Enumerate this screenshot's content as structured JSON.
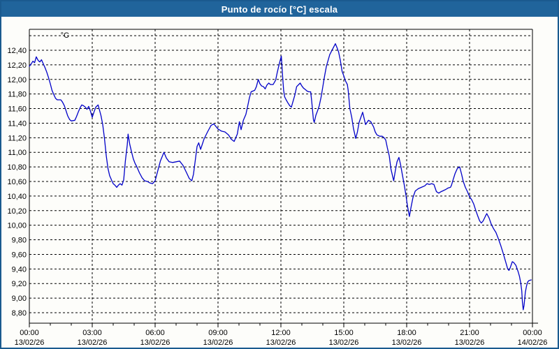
{
  "window": {
    "title": "Punto de rocío [°C] escala"
  },
  "colors": {
    "titlebar": "#20649b",
    "border": "#1a5a8f",
    "curve": "#0000c8",
    "grid": "#000000",
    "text": "#000000",
    "bg": "#fdfdfa"
  },
  "chart_data": {
    "type": "line",
    "title": "Punto de rocío [°C] escala",
    "unit_label": "°C",
    "legend": "none",
    "grid": "dashed",
    "x_axis": {
      "hours_span": 24,
      "major_tick_hours": 3,
      "minor_tick_hours": 1,
      "ticks": [
        {
          "time": "00:00",
          "date": "13/02/26"
        },
        {
          "time": "03:00",
          "date": "13/02/26"
        },
        {
          "time": "06:00",
          "date": "13/02/26"
        },
        {
          "time": "09:00",
          "date": "13/02/26"
        },
        {
          "time": "12:00",
          "date": "13/02/26"
        },
        {
          "time": "15:00",
          "date": "13/02/26"
        },
        {
          "time": "18:00",
          "date": "13/02/26"
        },
        {
          "time": "21:00",
          "date": "13/02/26"
        },
        {
          "time": "00:00",
          "date": "14/02/26"
        }
      ]
    },
    "y_axis": {
      "grid_min": 8.8,
      "grid_max": 12.6,
      "grid_step": 0.2,
      "labeled_min": 8.8,
      "labeled_max": 12.4,
      "decimal_separator": ","
    },
    "points": [
      [
        0.0,
        12.18
      ],
      [
        0.08,
        12.21
      ],
      [
        0.17,
        12.25
      ],
      [
        0.25,
        12.23
      ],
      [
        0.33,
        12.31
      ],
      [
        0.42,
        12.26
      ],
      [
        0.5,
        12.24
      ],
      [
        0.58,
        12.27
      ],
      [
        0.67,
        12.21
      ],
      [
        0.75,
        12.16
      ],
      [
        0.83,
        12.1
      ],
      [
        0.92,
        12.02
      ],
      [
        1.0,
        11.94
      ],
      [
        1.08,
        11.85
      ],
      [
        1.17,
        11.79
      ],
      [
        1.25,
        11.74
      ],
      [
        1.33,
        11.72
      ],
      [
        1.5,
        11.72
      ],
      [
        1.58,
        11.69
      ],
      [
        1.67,
        11.64
      ],
      [
        1.75,
        11.57
      ],
      [
        1.83,
        11.5
      ],
      [
        1.92,
        11.45
      ],
      [
        2.0,
        11.43
      ],
      [
        2.17,
        11.44
      ],
      [
        2.25,
        11.49
      ],
      [
        2.33,
        11.55
      ],
      [
        2.42,
        11.61
      ],
      [
        2.5,
        11.65
      ],
      [
        2.58,
        11.64
      ],
      [
        2.67,
        11.62
      ],
      [
        2.75,
        11.59
      ],
      [
        2.83,
        11.63
      ],
      [
        2.92,
        11.56
      ],
      [
        3.0,
        11.48
      ],
      [
        3.08,
        11.55
      ],
      [
        3.17,
        11.62
      ],
      [
        3.28,
        11.65
      ],
      [
        3.42,
        11.5
      ],
      [
        3.5,
        11.38
      ],
      [
        3.58,
        11.2
      ],
      [
        3.67,
        10.95
      ],
      [
        3.75,
        10.78
      ],
      [
        3.83,
        10.68
      ],
      [
        3.92,
        10.62
      ],
      [
        4.0,
        10.57
      ],
      [
        4.08,
        10.55
      ],
      [
        4.17,
        10.52
      ],
      [
        4.25,
        10.55
      ],
      [
        4.33,
        10.57
      ],
      [
        4.42,
        10.55
      ],
      [
        4.5,
        10.62
      ],
      [
        4.58,
        10.88
      ],
      [
        4.67,
        11.1
      ],
      [
        4.71,
        11.25
      ],
      [
        4.79,
        11.11
      ],
      [
        4.88,
        11.0
      ],
      [
        4.96,
        10.91
      ],
      [
        5.04,
        10.85
      ],
      [
        5.13,
        10.8
      ],
      [
        5.25,
        10.72
      ],
      [
        5.38,
        10.65
      ],
      [
        5.5,
        10.61
      ],
      [
        5.63,
        10.6
      ],
      [
        5.75,
        10.58
      ],
      [
        5.88,
        10.57
      ],
      [
        6.0,
        10.61
      ],
      [
        6.13,
        10.75
      ],
      [
        6.25,
        10.88
      ],
      [
        6.42,
        11.0
      ],
      [
        6.54,
        10.92
      ],
      [
        6.67,
        10.87
      ],
      [
        6.83,
        10.86
      ],
      [
        7.0,
        10.87
      ],
      [
        7.17,
        10.88
      ],
      [
        7.33,
        10.82
      ],
      [
        7.5,
        10.72
      ],
      [
        7.63,
        10.64
      ],
      [
        7.75,
        10.61
      ],
      [
        7.83,
        10.7
      ],
      [
        7.92,
        10.9
      ],
      [
        8.0,
        11.08
      ],
      [
        8.08,
        11.13
      ],
      [
        8.17,
        11.04
      ],
      [
        8.33,
        11.18
      ],
      [
        8.5,
        11.28
      ],
      [
        8.67,
        11.37
      ],
      [
        8.8,
        11.39
      ],
      [
        9.0,
        11.32
      ],
      [
        9.17,
        11.29
      ],
      [
        9.33,
        11.28
      ],
      [
        9.5,
        11.24
      ],
      [
        9.63,
        11.18
      ],
      [
        9.77,
        11.15
      ],
      [
        9.92,
        11.25
      ],
      [
        10.02,
        11.42
      ],
      [
        10.1,
        11.31
      ],
      [
        10.21,
        11.44
      ],
      [
        10.33,
        11.52
      ],
      [
        10.42,
        11.64
      ],
      [
        10.5,
        11.75
      ],
      [
        10.58,
        11.83
      ],
      [
        10.75,
        11.85
      ],
      [
        10.83,
        11.9
      ],
      [
        10.92,
        12.0
      ],
      [
        11.0,
        11.94
      ],
      [
        11.08,
        11.91
      ],
      [
        11.17,
        11.9
      ],
      [
        11.25,
        11.87
      ],
      [
        11.33,
        11.92
      ],
      [
        11.42,
        11.95
      ],
      [
        11.5,
        11.93
      ],
      [
        11.63,
        11.93
      ],
      [
        11.75,
        11.99
      ],
      [
        11.83,
        12.1
      ],
      [
        11.92,
        12.21
      ],
      [
        12.02,
        12.32
      ],
      [
        12.08,
        12.05
      ],
      [
        12.13,
        11.85
      ],
      [
        12.18,
        11.76
      ],
      [
        12.25,
        11.72
      ],
      [
        12.33,
        11.68
      ],
      [
        12.42,
        11.64
      ],
      [
        12.5,
        11.62
      ],
      [
        12.58,
        11.7
      ],
      [
        12.67,
        11.79
      ],
      [
        12.75,
        11.9
      ],
      [
        12.92,
        11.95
      ],
      [
        13.0,
        11.91
      ],
      [
        13.08,
        11.88
      ],
      [
        13.17,
        11.86
      ],
      [
        13.25,
        11.84
      ],
      [
        13.33,
        11.83
      ],
      [
        13.42,
        11.83
      ],
      [
        13.47,
        11.7
      ],
      [
        13.55,
        11.45
      ],
      [
        13.59,
        11.41
      ],
      [
        13.67,
        11.51
      ],
      [
        13.75,
        11.57
      ],
      [
        13.83,
        11.64
      ],
      [
        13.92,
        11.76
      ],
      [
        14.0,
        11.9
      ],
      [
        14.08,
        12.04
      ],
      [
        14.17,
        12.18
      ],
      [
        14.33,
        12.34
      ],
      [
        14.6,
        12.49
      ],
      [
        14.67,
        12.44
      ],
      [
        14.75,
        12.38
      ],
      [
        14.83,
        12.27
      ],
      [
        14.92,
        12.11
      ],
      [
        15.0,
        12.05
      ],
      [
        15.08,
        11.98
      ],
      [
        15.17,
        11.93
      ],
      [
        15.21,
        11.85
      ],
      [
        15.29,
        11.6
      ],
      [
        15.38,
        11.48
      ],
      [
        15.46,
        11.33
      ],
      [
        15.57,
        11.19
      ],
      [
        15.65,
        11.28
      ],
      [
        15.73,
        11.41
      ],
      [
        15.9,
        11.55
      ],
      [
        16.04,
        11.38
      ],
      [
        16.18,
        11.44
      ],
      [
        16.29,
        11.42
      ],
      [
        16.42,
        11.35
      ],
      [
        16.5,
        11.28
      ],
      [
        16.58,
        11.24
      ],
      [
        16.71,
        11.22
      ],
      [
        16.83,
        11.22
      ],
      [
        16.92,
        11.2
      ],
      [
        17.0,
        11.17
      ],
      [
        17.08,
        11.06
      ],
      [
        17.17,
        10.95
      ],
      [
        17.25,
        10.77
      ],
      [
        17.38,
        10.61
      ],
      [
        17.46,
        10.75
      ],
      [
        17.54,
        10.87
      ],
      [
        17.63,
        10.93
      ],
      [
        17.71,
        10.83
      ],
      [
        17.79,
        10.7
      ],
      [
        17.88,
        10.56
      ],
      [
        17.96,
        10.42
      ],
      [
        18.04,
        10.26
      ],
      [
        18.13,
        10.12
      ],
      [
        18.21,
        10.25
      ],
      [
        18.3,
        10.38
      ],
      [
        18.41,
        10.47
      ],
      [
        18.55,
        10.5
      ],
      [
        18.7,
        10.52
      ],
      [
        18.86,
        10.54
      ],
      [
        18.97,
        10.57
      ],
      [
        19.08,
        10.56
      ],
      [
        19.19,
        10.57
      ],
      [
        19.3,
        10.56
      ],
      [
        19.42,
        10.46
      ],
      [
        19.53,
        10.44
      ],
      [
        19.64,
        10.46
      ],
      [
        19.86,
        10.49
      ],
      [
        19.97,
        10.51
      ],
      [
        20.09,
        10.52
      ],
      [
        20.14,
        10.55
      ],
      [
        20.2,
        10.61
      ],
      [
        20.31,
        10.71
      ],
      [
        20.42,
        10.78
      ],
      [
        20.53,
        10.8
      ],
      [
        20.62,
        10.7
      ],
      [
        20.7,
        10.6
      ],
      [
        20.8,
        10.52
      ],
      [
        20.9,
        10.46
      ],
      [
        21.0,
        10.39
      ],
      [
        21.1,
        10.35
      ],
      [
        21.2,
        10.29
      ],
      [
        21.3,
        10.2
      ],
      [
        21.4,
        10.12
      ],
      [
        21.48,
        10.06
      ],
      [
        21.56,
        10.03
      ],
      [
        21.65,
        10.06
      ],
      [
        21.75,
        10.12
      ],
      [
        21.82,
        10.16
      ],
      [
        21.93,
        10.1
      ],
      [
        22.04,
        10.01
      ],
      [
        22.15,
        9.95
      ],
      [
        22.26,
        9.9
      ],
      [
        22.38,
        9.81
      ],
      [
        22.49,
        9.72
      ],
      [
        22.6,
        9.62
      ],
      [
        22.71,
        9.51
      ],
      [
        22.82,
        9.4
      ],
      [
        22.88,
        9.38
      ],
      [
        22.93,
        9.41
      ],
      [
        23.04,
        9.5
      ],
      [
        23.1,
        9.49
      ],
      [
        23.21,
        9.45
      ],
      [
        23.32,
        9.36
      ],
      [
        23.38,
        9.3
      ],
      [
        23.44,
        9.21
      ],
      [
        23.49,
        9.1
      ],
      [
        23.52,
        8.95
      ],
      [
        23.56,
        8.84
      ],
      [
        23.6,
        8.9
      ],
      [
        23.66,
        9.08
      ],
      [
        23.72,
        9.17
      ],
      [
        23.77,
        9.22
      ],
      [
        23.83,
        9.24
      ],
      [
        23.94,
        9.25
      ]
    ]
  }
}
